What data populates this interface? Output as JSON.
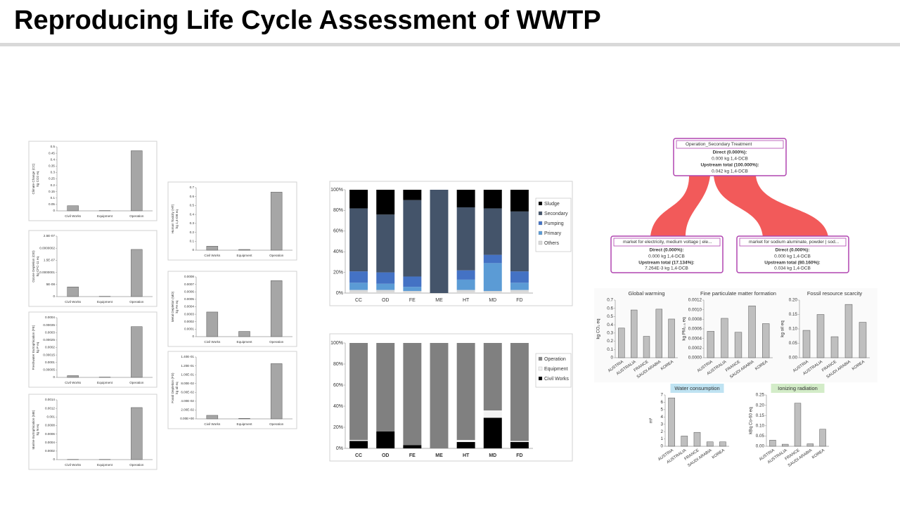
{
  "title": "Reproducing Life Cycle Assessment of WWTP",
  "diagram": {
    "nodes": [
      {
        "title": "Operation_Secondary Treatment",
        "direct_label": "Direct (0.000%):",
        "direct_value": "0.000 kg 1,4-DCB",
        "upstream_label": "Upstream total (100.000%):",
        "upstream_value": "0.042 kg 1,4-DCB"
      },
      {
        "title": "market for electricity, medium voltage | ele...",
        "direct_label": "Direct (0.000%):",
        "direct_value": "0.000 kg 1,4-DCB",
        "upstream_label": "Upstream total (17.134%):",
        "upstream_value": "7.264E-3 kg 1,4-DCB"
      },
      {
        "title": "market for sodium aluminate, powder | sod...",
        "direct_label": "Direct (0.000%):",
        "direct_value": "0.000 kg 1,4-DCB",
        "upstream_label": "Upstream total (80.160%):",
        "upstream_value": "0.034 kg 1,4-DCB"
      }
    ]
  },
  "chart_data": [
    {
      "type": "bar",
      "y_label": "Climate Change (CC)",
      "y_unit": "kg CO2 eq",
      "categories": [
        "Civil Works",
        "Equipment",
        "Operation"
      ],
      "values": [
        0.04,
        0.002,
        0.47
      ],
      "color": "#a6a6a6",
      "ylim": [
        0,
        0.5
      ],
      "yticks": [
        0,
        0.05,
        0.1,
        0.15,
        0.2,
        0.25,
        0.3,
        0.35,
        0.4,
        0.45,
        0.5
      ],
      "grid": false
    },
    {
      "type": "bar",
      "y_label": "Ozone Depletion (OD)",
      "y_unit": "kg CFC-11 eq",
      "categories": [
        "Civil Works",
        "Equipment",
        "Operation"
      ],
      "values": [
        4e-08,
        1e-09,
        1.95e-07
      ],
      "color": "#a6a6a6",
      "ylim": [
        0,
        2.5e-07
      ],
      "yticks": [
        0,
        {
          "value": 5e-08,
          "label": "5E-08"
        },
        {
          "value": 1e-07,
          "label": "0.0000001"
        },
        {
          "value": 1.5e-07,
          "label": "1.5E-07"
        },
        {
          "value": 2e-07,
          "label": "0.0000002"
        },
        {
          "value": 2.5e-07,
          "label": "2.5E-07"
        }
      ],
      "grid": false
    },
    {
      "type": "bar",
      "y_label": "Freshwater Eutrophication (FE)",
      "y_unit": "kg P eq",
      "categories": [
        "Civil Works",
        "Equipment",
        "Operation"
      ],
      "values": [
        1.2e-05,
        2e-06,
        0.00034
      ],
      "color": "#a6a6a6",
      "ylim": [
        0,
        0.0004
      ],
      "yticks": [
        0,
        5e-05,
        0.0001,
        0.00015,
        0.0002,
        0.00025,
        0.0003,
        0.00035,
        0.0004
      ],
      "grid": false
    },
    {
      "type": "bar",
      "y_label": "Marine Eutrophication (ME)",
      "y_unit": "kg N eq",
      "categories": [
        "Civil Works",
        "Equipment",
        "Operation"
      ],
      "values": [
        5e-06,
        5e-06,
        0.00122
      ],
      "color": "#a6a6a6",
      "ylim": [
        0,
        0.0014
      ],
      "yticks": [
        0,
        0.0002,
        0.0004,
        0.0006,
        0.0008,
        0.001,
        0.0012,
        0.0014
      ],
      "grid": false
    },
    {
      "type": "bar",
      "y_label": "Human Toxicity (HT)",
      "y_unit": "kg 1,4-DB eq",
      "categories": [
        "Civil Works",
        "Equipment",
        "Operation"
      ],
      "values": [
        0.045,
        0.008,
        0.65
      ],
      "color": "#a6a6a6",
      "ylim": [
        0,
        0.7
      ],
      "yticks": [
        0,
        0.1,
        0.2,
        0.3,
        0.4,
        0.5,
        0.6,
        0.7
      ],
      "grid": false
    },
    {
      "type": "bar",
      "y_label": "Metal Depletion (MD)",
      "y_unit": "kg Fe eq",
      "categories": [
        "Civil Works",
        "Equipment",
        "Operation"
      ],
      "values": [
        0.00033,
        7e-05,
        0.00075
      ],
      "color": "#a6a6a6",
      "ylim": [
        0,
        0.0008
      ],
      "yticks": [
        0,
        0.0001,
        0.0002,
        0.0003,
        0.0004,
        0.0005,
        0.0006,
        0.0007,
        0.0008
      ],
      "grid": false
    },
    {
      "type": "bar",
      "y_label": "Fossil Depletion (FD)",
      "y_unit": "kg oil eq",
      "categories": [
        "Civil Works",
        "Equipment",
        "Operation"
      ],
      "values": [
        0.008,
        0.001,
        0.125
      ],
      "color": "#a6a6a6",
      "ylim": [
        0,
        0.14
      ],
      "yticks": [
        {
          "value": 0,
          "label": "0.00E+00"
        },
        {
          "value": 0.02,
          "label": "2.00E-02"
        },
        {
          "value": 0.04,
          "label": "4.00E-02"
        },
        {
          "value": 0.06,
          "label": "6.00E-02"
        },
        {
          "value": 0.08,
          "label": "8.00E-02"
        },
        {
          "value": 0.1,
          "label": "1.00E-01"
        },
        {
          "value": 0.12,
          "label": "1.20E-01"
        },
        {
          "value": 0.14,
          "label": "1.40E-01"
        }
      ],
      "grid": false
    },
    {
      "type": "stacked_bar",
      "categories": [
        "CC",
        "OD",
        "FE",
        "ME",
        "HT",
        "MD",
        "FD"
      ],
      "series": [
        {
          "name": "Others",
          "color": "#d9d9d9",
          "values": [
            3,
            3,
            2,
            0,
            3,
            2,
            3
          ]
        },
        {
          "name": "Primary",
          "color": "#5b9bd5",
          "values": [
            7,
            6,
            4,
            0,
            10,
            27,
            7
          ]
        },
        {
          "name": "Pumping",
          "color": "#4472c4",
          "values": [
            11,
            11,
            10,
            0,
            9,
            8,
            11
          ]
        },
        {
          "name": "Secondary",
          "color": "#44546a",
          "values": [
            61,
            56,
            74,
            100,
            61,
            45,
            58
          ]
        },
        {
          "name": "Sludge",
          "color": "#000000",
          "values": [
            18,
            24,
            10,
            0,
            17,
            18,
            21
          ]
        }
      ],
      "ylim": [
        0,
        100
      ],
      "yticks": [
        {
          "value": 0,
          "label": "0%"
        },
        {
          "value": 20,
          "label": "20%"
        },
        {
          "value": 40,
          "label": "40%"
        },
        {
          "value": 60,
          "label": "60%"
        },
        {
          "value": 80,
          "label": "80%"
        },
        {
          "value": 100,
          "label": "100%"
        }
      ],
      "grid": false,
      "legend": "right"
    },
    {
      "type": "stacked_bar",
      "categories": [
        "CC",
        "OD",
        "FE",
        "ME",
        "HT",
        "MD",
        "FD"
      ],
      "series": [
        {
          "name": "Civil Works",
          "color": "#000000",
          "values": [
            7,
            16,
            3,
            0,
            6,
            29,
            6
          ]
        },
        {
          "name": "Equipment",
          "color": "#f2f2f2",
          "values": [
            1,
            0,
            0,
            0,
            2,
            7,
            1
          ]
        },
        {
          "name": "Operation",
          "color": "#808080",
          "values": [
            92,
            84,
            97,
            100,
            92,
            64,
            93
          ]
        }
      ],
      "ylim": [
        0,
        100
      ],
      "yticks": [
        {
          "value": 0,
          "label": "0%"
        },
        {
          "value": 20,
          "label": "20%"
        },
        {
          "value": 40,
          "label": "40%"
        },
        {
          "value": 60,
          "label": "60%"
        },
        {
          "value": 80,
          "label": "80%"
        },
        {
          "value": 100,
          "label": "100%"
        }
      ],
      "grid": false,
      "legend": "right"
    },
    {
      "type": "bar",
      "title": "Global warming",
      "y_label": "kg CO₂ eq",
      "categories": [
        "AUSTRIA",
        "AUSTRALIA",
        "FRANCE",
        "SAUDI ARABIA",
        "KOREA"
      ],
      "values": [
        0.36,
        0.58,
        0.26,
        0.59,
        0.47
      ],
      "color": "#bfbfbf",
      "ylim": [
        0,
        0.7
      ],
      "yticks": [
        0,
        0.1,
        0.2,
        0.3,
        0.4,
        0.5,
        0.6,
        0.7
      ],
      "grid": false
    },
    {
      "type": "bar",
      "title": "Fine particulate matter formation",
      "y_label": "kg PM₂.₅ eq",
      "categories": [
        "AUSTRIA",
        "AUSTRALIA",
        "FRANCE",
        "SAUDI ARABIA",
        "KOREA"
      ],
      "values": [
        0.00055,
        0.00082,
        0.00053,
        0.00108,
        0.00071
      ],
      "color": "#bfbfbf",
      "ylim": [
        0,
        0.0012
      ],
      "yticks": [
        {
          "value": 0,
          "label": "0.0000"
        },
        {
          "value": 0.0002,
          "label": "0.0002"
        },
        {
          "value": 0.0004,
          "label": "0.0004"
        },
        {
          "value": 0.0006,
          "label": "0.0006"
        },
        {
          "value": 0.0008,
          "label": "0.0008"
        },
        {
          "value": 0.001,
          "label": "0.0010"
        },
        {
          "value": 0.0012,
          "label": "0.0012"
        }
      ],
      "grid": false
    },
    {
      "type": "bar",
      "title": "Fossil resource scarcity",
      "y_label": "kg oil eq",
      "categories": [
        "AUSTRIA",
        "AUSTRALIA",
        "FRANCE",
        "SAUDI ARABIA",
        "KOREA"
      ],
      "values": [
        0.095,
        0.15,
        0.073,
        0.185,
        0.123
      ],
      "color": "#bfbfbf",
      "ylim": [
        0,
        0.2
      ],
      "yticks": [
        {
          "value": 0,
          "label": "0.00"
        },
        {
          "value": 0.05,
          "label": "0.05"
        },
        {
          "value": 0.1,
          "label": "0.10"
        },
        {
          "value": 0.15,
          "label": "0.15"
        },
        {
          "value": 0.2,
          "label": "0.20"
        }
      ],
      "grid": false
    },
    {
      "type": "bar",
      "title": "Water consumption",
      "y_label": "m³",
      "categories": [
        "AUSTRIA",
        "AUSTRALIA",
        "FRANCE",
        "SAUDI ARABIA",
        "KOREA"
      ],
      "values": [
        6.6,
        1.4,
        1.9,
        0.6,
        0.6
      ],
      "color": "#bfbfbf",
      "ylim": [
        0,
        7
      ],
      "yticks": [
        0,
        1,
        2,
        3,
        4,
        5,
        6,
        7
      ],
      "grid": false
    },
    {
      "type": "bar",
      "title": "Ionizing radiation",
      "y_label": "kBq Co-60 eq",
      "categories": [
        "AUSTRIA",
        "AUSTRALIA",
        "FRANCE",
        "SAUDI ARABIA",
        "KOREA"
      ],
      "values": [
        0.03,
        0.01,
        0.21,
        0.012,
        0.083
      ],
      "color": "#bfbfbf",
      "ylim": [
        0,
        0.25
      ],
      "yticks": [
        {
          "value": 0,
          "label": "0.00"
        },
        {
          "value": 0.05,
          "label": "0.05"
        },
        {
          "value": 0.1,
          "label": "0.10"
        },
        {
          "value": 0.15,
          "label": "0.15"
        },
        {
          "value": 0.2,
          "label": "0.20"
        },
        {
          "value": 0.25,
          "label": "0.25"
        }
      ],
      "grid": false
    }
  ]
}
